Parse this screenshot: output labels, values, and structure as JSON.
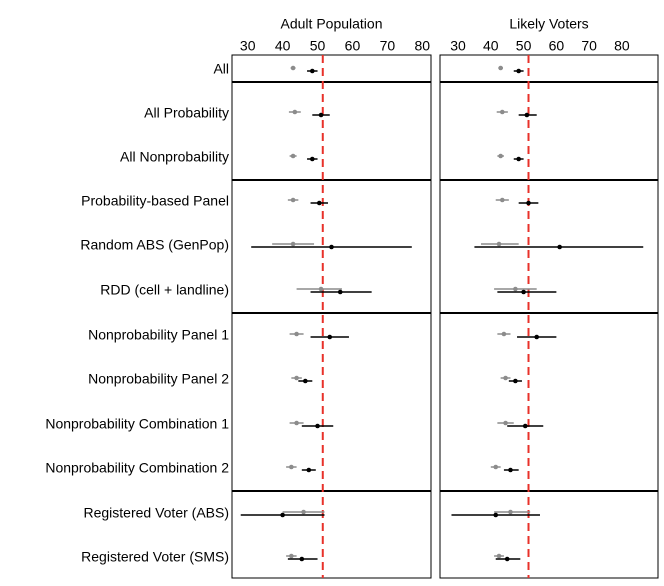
{
  "chart_data": {
    "type": "forest",
    "reference_line": {
      "value": 51.5,
      "color": "#e8312a",
      "style": "dashed"
    },
    "series": [
      {
        "name": "gray",
        "color": "#8c8c8c"
      },
      {
        "name": "black",
        "color": "#000000"
      }
    ],
    "rows": [
      "All",
      "All Probability",
      "All Nonprobability",
      "Probability-based Panel",
      "Random ABS (GenPop)",
      "RDD (cell + landline)",
      "Nonprobability Panel 1",
      "Nonprobability Panel 2",
      "Nonprobability Combination 1",
      "Nonprobability Combination 2",
      "Registered Voter (ABS)",
      "Registered Voter (SMS)"
    ],
    "group_breaks_after": [
      0,
      2,
      5,
      9
    ],
    "panels": [
      {
        "title": "Adult Population",
        "xlim": [
          25.5,
          82.5
        ],
        "ticks": [
          "30",
          "40",
          "50",
          "60",
          "70",
          "80"
        ],
        "points": [
          {
            "row": "All",
            "gray": [
              43,
              42.3,
              43.7
            ],
            "black": [
              48.5,
              47,
              50
            ]
          },
          {
            "row": "All Probability",
            "gray": [
              43.5,
              41.8,
              45.2
            ],
            "black": [
              51,
              48.5,
              53.5
            ]
          },
          {
            "row": "All Nonprobability",
            "gray": [
              43,
              42,
              44
            ],
            "black": [
              48.5,
              47,
              50
            ]
          },
          {
            "row": "Probability-based Panel",
            "gray": [
              43,
              41.5,
              44.5
            ],
            "black": [
              50.5,
              48,
              53
            ]
          },
          {
            "row": "Random ABS (GenPop)",
            "gray": [
              43,
              37,
              49
            ],
            "black": [
              54,
              31,
              77
            ]
          },
          {
            "row": "RDD (cell + landline)",
            "gray": [
              51,
              44,
              57
            ],
            "black": [
              56.5,
              48,
              65.5
            ]
          },
          {
            "row": "Nonprobability Panel 1",
            "gray": [
              44,
              42,
              46
            ],
            "black": [
              53.5,
              48,
              59
            ]
          },
          {
            "row": "Nonprobability Panel 2",
            "gray": [
              44,
              42.5,
              45.5
            ],
            "black": [
              46.5,
              44.5,
              48.5
            ]
          },
          {
            "row": "Nonprobability Combination 1",
            "gray": [
              44,
              42,
              46
            ],
            "black": [
              50,
              45.5,
              54.5
            ]
          },
          {
            "row": "Nonprobability Combination 2",
            "gray": [
              42.5,
              41,
              44
            ],
            "black": [
              47.5,
              45.5,
              49.5
            ]
          },
          {
            "row": "Registered Voter (ABS)",
            "gray": [
              46,
              40,
              52
            ],
            "black": [
              40,
              28,
              52
            ]
          },
          {
            "row": "Registered Voter (SMS)",
            "gray": [
              42.5,
              41,
              44
            ],
            "black": [
              45.5,
              41.5,
              50
            ]
          }
        ]
      },
      {
        "title": "Likely Voters",
        "xlim": [
          24.5,
          91
        ],
        "ticks": [
          "30",
          "40",
          "50",
          "60",
          "70",
          "80"
        ],
        "points": [
          {
            "row": "All",
            "gray": [
              43,
              42.3,
              43.7
            ],
            "black": [
              48.5,
              47,
              50
            ]
          },
          {
            "row": "All Probability",
            "gray": [
              43.5,
              41.8,
              45.2
            ],
            "black": [
              51,
              48.5,
              54
            ]
          },
          {
            "row": "All Nonprobability",
            "gray": [
              43,
              42,
              44
            ],
            "black": [
              48.5,
              47,
              50
            ]
          },
          {
            "row": "Probability-based Panel",
            "gray": [
              43.5,
              41.5,
              45.5
            ],
            "black": [
              51.5,
              48.5,
              54.5
            ]
          },
          {
            "row": "Random ABS (GenPop)",
            "gray": [
              42.5,
              37,
              48.5
            ],
            "black": [
              61,
              35,
              86.5
            ]
          },
          {
            "row": "RDD (cell + landline)",
            "gray": [
              47.5,
              41,
              54
            ],
            "black": [
              50,
              42,
              60
            ]
          },
          {
            "row": "Nonprobability Panel 1",
            "gray": [
              44,
              42,
              46
            ],
            "black": [
              54,
              48,
              60
            ]
          },
          {
            "row": "Nonprobability Panel 2",
            "gray": [
              44.5,
              43,
              46
            ],
            "black": [
              47.5,
              45.5,
              49.5
            ]
          },
          {
            "row": "Nonprobability Combination 1",
            "gray": [
              44.5,
              42,
              47
            ],
            "black": [
              50.5,
              45,
              56
            ]
          },
          {
            "row": "Nonprobability Combination 2",
            "gray": [
              41.5,
              40,
              43
            ],
            "black": [
              46,
              44,
              48.5
            ]
          },
          {
            "row": "Registered Voter (ABS)",
            "gray": [
              46,
              41,
              52
            ],
            "black": [
              41.5,
              28,
              55
            ]
          },
          {
            "row": "Registered Voter (SMS)",
            "gray": [
              42.5,
              41,
              44
            ],
            "black": [
              45,
              41.5,
              49
            ]
          }
        ]
      }
    ]
  }
}
